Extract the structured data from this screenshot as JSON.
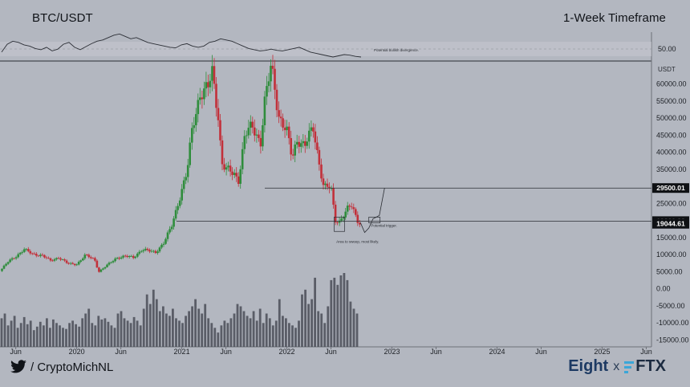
{
  "header": {
    "pair": "BTC/USDT",
    "timeframe": "1-Week Timeframe"
  },
  "footer": {
    "handle": "/ CryptoMichNL",
    "brand_left": "Eight",
    "brand_sep": "x",
    "brand_right": "FTX"
  },
  "colors": {
    "background": "#b3b7c0",
    "candle_up": "#2f8d3c",
    "candle_down": "#c2303a",
    "volume": "#4a4e57",
    "rsi": "#2c2f36",
    "level_tag": "#0f1114"
  },
  "chart_data": {
    "type": "candlestick",
    "title": "BTC/USDT",
    "timeframe": "1-Week Timeframe",
    "ylabel": "USDT",
    "ylim": [
      -17000,
      66000
    ],
    "y_ticks": [
      60000,
      55000,
      50000,
      45000,
      40000,
      35000,
      30000,
      25000,
      20000,
      15000,
      10000,
      5000,
      0,
      -5000,
      -10000,
      -15000
    ],
    "y_tick_labels": [
      "60000.00",
      "55000.00",
      "50000.00",
      "45000.00",
      "40000.00",
      "35000.00",
      "30000.00",
      "25000.00",
      "20000.00",
      "15000.00",
      "10000.00",
      "5000.00",
      "0.00",
      "-5000.00",
      "-10000.00",
      "-15000.00"
    ],
    "x_ticks": [
      {
        "label": "Jun",
        "x": 2019.42
      },
      {
        "label": "2020",
        "x": 2020.0
      },
      {
        "label": "Jun",
        "x": 2020.42
      },
      {
        "label": "2021",
        "x": 2021.0
      },
      {
        "label": "Jun",
        "x": 2021.42
      },
      {
        "label": "2022",
        "x": 2022.0
      },
      {
        "label": "Jun",
        "x": 2022.42
      },
      {
        "label": "2023",
        "x": 2023.0
      },
      {
        "label": "Jun",
        "x": 2023.42
      },
      {
        "label": "2024",
        "x": 2024.0
      },
      {
        "label": "Jun",
        "x": 2024.42
      },
      {
        "label": "2025",
        "x": 2025.0
      },
      {
        "label": "Jun",
        "x": 2025.42
      }
    ],
    "xlim": [
      2019.27,
      2025.47
    ],
    "price_series": [
      [
        2019.27,
        5200
      ],
      [
        2019.35,
        8000
      ],
      [
        2019.42,
        9500
      ],
      [
        2019.5,
        11500
      ],
      [
        2019.58,
        10200
      ],
      [
        2019.67,
        9800
      ],
      [
        2019.75,
        8200
      ],
      [
        2019.83,
        9200
      ],
      [
        2019.92,
        7300
      ],
      [
        2020.0,
        7200
      ],
      [
        2020.08,
        9800
      ],
      [
        2020.17,
        8600
      ],
      [
        2020.21,
        5000
      ],
      [
        2020.29,
        6900
      ],
      [
        2020.38,
        9100
      ],
      [
        2020.46,
        9500
      ],
      [
        2020.54,
        9200
      ],
      [
        2020.62,
        11500
      ],
      [
        2020.75,
        10700
      ],
      [
        2020.83,
        13500
      ],
      [
        2020.9,
        18000
      ],
      [
        2021.0,
        29000
      ],
      [
        2021.05,
        34000
      ],
      [
        2021.1,
        47000
      ],
      [
        2021.17,
        57000
      ],
      [
        2021.25,
        58800
      ],
      [
        2021.29,
        63500
      ],
      [
        2021.35,
        50000
      ],
      [
        2021.38,
        37000
      ],
      [
        2021.42,
        35000
      ],
      [
        2021.5,
        33500
      ],
      [
        2021.54,
        32000
      ],
      [
        2021.6,
        45000
      ],
      [
        2021.67,
        47500
      ],
      [
        2021.75,
        43000
      ],
      [
        2021.79,
        55000
      ],
      [
        2021.85,
        65000
      ],
      [
        2021.88,
        60000
      ],
      [
        2021.92,
        51000
      ],
      [
        2022.0,
        46000
      ],
      [
        2022.05,
        38000
      ],
      [
        2022.1,
        44000
      ],
      [
        2022.17,
        42000
      ],
      [
        2022.25,
        47000
      ],
      [
        2022.29,
        40000
      ],
      [
        2022.35,
        30000
      ],
      [
        2022.42,
        29500
      ],
      [
        2022.46,
        20000
      ],
      [
        2022.5,
        19800
      ],
      [
        2022.58,
        23500
      ],
      [
        2022.62,
        24200
      ],
      [
        2022.67,
        20000
      ],
      [
        2022.7,
        19400
      ]
    ],
    "volume_bars": [
      12000,
      14000,
      9000,
      11000,
      13000,
      8000,
      10000,
      12500,
      9500,
      11000,
      7000,
      8500,
      10500,
      9000,
      12000,
      8000,
      11500,
      10000,
      9000,
      8000,
      7500,
      10000,
      11000,
      9500,
      8500,
      12000,
      14000,
      16000,
      10000,
      9000,
      13000,
      11500,
      12000,
      10500,
      9000,
      8000,
      14000,
      15000,
      12000,
      11000,
      10000,
      12500,
      11000,
      9000,
      16000,
      22000,
      18000,
      24000,
      20000,
      15000,
      17000,
      14000,
      13000,
      16000,
      12000,
      11000,
      10000,
      13000,
      15000,
      17000,
      20000,
      16000,
      14000,
      18000,
      12000,
      10000,
      8000,
      6000,
      9000,
      11000,
      10000,
      12000,
      14000,
      18000,
      17000,
      15000,
      13000,
      12000,
      15000,
      11000,
      16000,
      10000,
      14000,
      12000,
      9000,
      11000,
      20000,
      13000,
      12000,
      10000,
      9000,
      8000,
      11000,
      22000,
      24000,
      18000,
      20000,
      29000,
      15000,
      14000,
      10000,
      17000,
      28000,
      29000,
      26000,
      30000,
      31000,
      28000,
      19000,
      16000,
      14000
    ],
    "volume_scale": {
      "max": 31000,
      "zero_y_value": -17000
    },
    "rsi_series": [
      42,
      55,
      60,
      58,
      54,
      52,
      48,
      46,
      50,
      44,
      47,
      55,
      58,
      50,
      46,
      51,
      56,
      60,
      62,
      66,
      70,
      72,
      68,
      64,
      66,
      62,
      58,
      56,
      54,
      52,
      50,
      49,
      54,
      56,
      52,
      50,
      52,
      58,
      60,
      64,
      62,
      60,
      56,
      52,
      48,
      46,
      44,
      45,
      47,
      45,
      44,
      46,
      48,
      50,
      46,
      42,
      40,
      38,
      36,
      34,
      36,
      38,
      37,
      35,
      34
    ],
    "rsi_level_label": "50.00",
    "levels": [
      {
        "name": "resistance",
        "value": 29500.01,
        "label": "29500.01"
      },
      {
        "name": "support",
        "value": 19820.28,
        "label": "19820.28"
      },
      {
        "name": "current",
        "value": 19044.61,
        "label": "19044.61"
      }
    ],
    "annotations": [
      {
        "text": "Potential bullish divergence.",
        "panel": "rsi"
      },
      {
        "text": "Potential trigger.",
        "panel": "price",
        "x": 2022.8,
        "y": 18200
      },
      {
        "text": "Area to sweep, most likely.",
        "panel": "price",
        "x": 2022.47,
        "y": 13500
      }
    ],
    "projection": [
      [
        2022.7,
        19400
      ],
      [
        2022.74,
        16500
      ],
      [
        2022.78,
        17800
      ],
      [
        2022.82,
        20500
      ],
      [
        2022.88,
        21500
      ],
      [
        2022.93,
        29500
      ]
    ]
  }
}
